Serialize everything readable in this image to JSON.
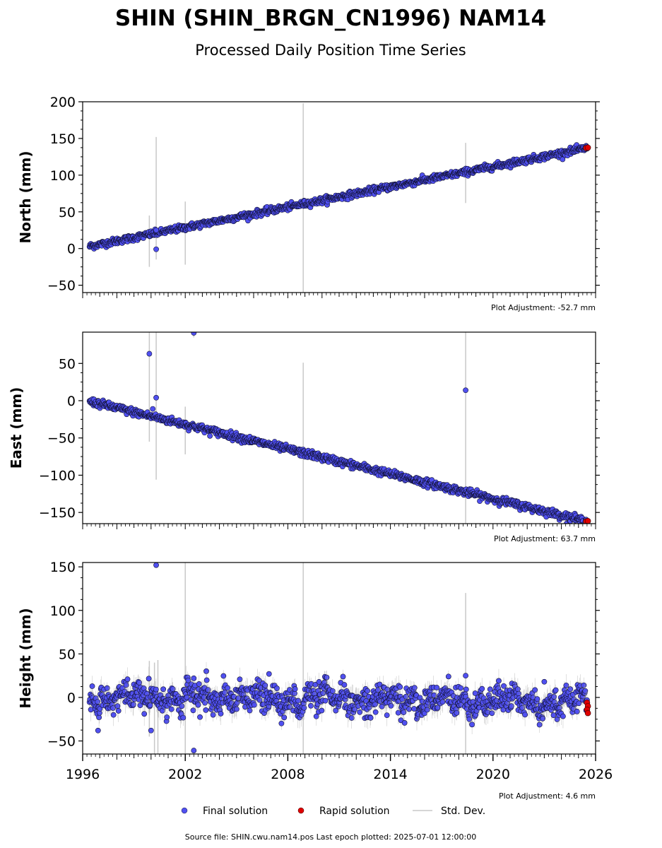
{
  "header": {
    "title": "SHIN (SHIN_BRGN_CN1996) NAM14",
    "subtitle": "Processed Daily Position Time Series"
  },
  "footer": {
    "source": "Source file: SHIN.cwu.nam14.pos  Last epoch plotted: 2025-07-01 12:00:00"
  },
  "legend": {
    "final": "Final solution",
    "rapid": "Rapid solution",
    "stddev": "Std. Dev."
  },
  "colors": {
    "final_fill": "#5050f0",
    "final_edge": "#111133",
    "rapid_fill": "#e00000",
    "stddev": "#c8c8c8"
  },
  "chart_data": [
    {
      "type": "scatter",
      "ylabel": "North (mm)",
      "adjustment": "Plot Adjustment: -52.7 mm",
      "xlim": [
        1996,
        2026
      ],
      "ylim": [
        -60,
        200
      ],
      "yticks": [
        -50,
        0,
        50,
        100,
        150,
        200
      ],
      "trend": {
        "start_year": 1996.4,
        "start_value": 3,
        "end_year": 2025.5,
        "end_value": 137,
        "scatter": 2.2
      },
      "outliers": [
        {
          "x": 2000.3,
          "y": -1
        },
        {
          "x": 2000.3,
          "y": 25
        }
      ],
      "stddev_bars": [
        {
          "x": 1999.9,
          "low": -25,
          "high": 45
        },
        {
          "x": 2000.3,
          "low": -15,
          "high": 152
        },
        {
          "x": 2002.0,
          "low": -22,
          "high": 64
        },
        {
          "x": 2008.9,
          "low": -60,
          "high": 198
        },
        {
          "x": 2018.4,
          "low": 62,
          "high": 144
        }
      ],
      "rapid": [
        {
          "x": 2025.45,
          "y": 137
        },
        {
          "x": 2025.55,
          "y": 137.5
        }
      ],
      "xticks": [],
      "show_xlabels": false
    },
    {
      "type": "scatter",
      "ylabel": "East (mm)",
      "adjustment": "Plot Adjustment: 63.7 mm",
      "xlim": [
        1996,
        2026
      ],
      "ylim": [
        -165,
        92
      ],
      "yticks": [
        -150,
        -100,
        -50,
        0,
        50
      ],
      "trend": {
        "start_year": 1996.4,
        "start_value": -1,
        "end_year": 2025.5,
        "end_value": -162,
        "scatter": 2.5
      },
      "outliers": [
        {
          "x": 1999.9,
          "y": 63
        },
        {
          "x": 2000.3,
          "y": 4
        },
        {
          "x": 2000.1,
          "y": -11
        },
        {
          "x": 2002.5,
          "y": 91
        },
        {
          "x": 2018.4,
          "y": 14
        }
      ],
      "stddev_bars": [
        {
          "x": 1999.9,
          "low": -55,
          "high": 92
        },
        {
          "x": 2000.3,
          "low": -106,
          "high": 92
        },
        {
          "x": 2002.0,
          "low": -72,
          "high": -8
        },
        {
          "x": 2002.5,
          "low": 85,
          "high": 92
        },
        {
          "x": 2008.9,
          "low": -165,
          "high": 51
        },
        {
          "x": 2018.4,
          "low": -165,
          "high": 92
        }
      ],
      "rapid": [
        {
          "x": 2025.45,
          "y": -162
        },
        {
          "x": 2025.55,
          "y": -161.5
        }
      ],
      "show_xlabels": false
    },
    {
      "type": "scatter",
      "ylabel": "Height (mm)",
      "adjustment": "Plot Adjustment: 4.6 mm",
      "xlim": [
        1996,
        2026
      ],
      "ylim": [
        -65,
        155
      ],
      "yticks": [
        -50,
        0,
        50,
        100,
        150
      ],
      "xticks": [
        1996,
        2002,
        2008,
        2014,
        2020,
        2026
      ],
      "xtick_labels": [
        "1996",
        "2002",
        "2008",
        "2014",
        "2020",
        "2026"
      ],
      "trend": {
        "start_year": 1996.4,
        "start_value": 0,
        "end_year": 2025.5,
        "end_value": -5,
        "scatter": 8.0,
        "seasonal_amp": 6
      },
      "outliers": [
        {
          "x": 2000.3,
          "y": 152
        },
        {
          "x": 1996.9,
          "y": -38
        },
        {
          "x": 2000.0,
          "y": -38
        },
        {
          "x": 2002.5,
          "y": -61
        },
        {
          "x": 2002.5,
          "y": 22
        },
        {
          "x": 2006.9,
          "y": 27
        },
        {
          "x": 2018.4,
          "y": 25
        },
        {
          "x": 2023.0,
          "y": 18
        }
      ],
      "stddev_bars": [
        {
          "x": 1999.9,
          "low": -45,
          "high": 42
        },
        {
          "x": 2000.2,
          "low": -65,
          "high": 40
        },
        {
          "x": 2000.4,
          "low": -65,
          "high": 43
        },
        {
          "x": 2002.0,
          "low": -65,
          "high": 155
        },
        {
          "x": 2008.9,
          "low": -65,
          "high": 155
        },
        {
          "x": 2018.4,
          "low": -65,
          "high": 120
        }
      ],
      "rapid": [
        {
          "x": 2025.5,
          "y": -6
        },
        {
          "x": 2025.55,
          "y": -10
        },
        {
          "x": 2025.5,
          "y": -14
        },
        {
          "x": 2025.55,
          "y": -18
        }
      ],
      "show_xlabels": true
    }
  ]
}
